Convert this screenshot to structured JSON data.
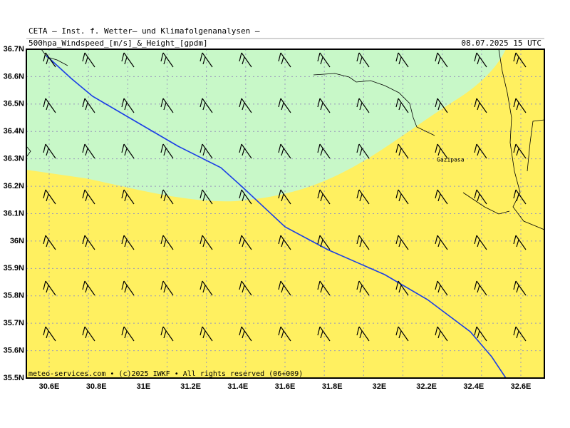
{
  "header": {
    "title": "CETA – Inst. f. Wetter– und Klimafolgenanalysen –",
    "subtitle": "500hpa_Windspeed_[m/s]_&_Height_[gpdm]",
    "date": "08.07.2025 15 UTC"
  },
  "map": {
    "lat_labels": [
      "36.7N",
      "36.6N",
      "36.5N",
      "36.4N",
      "36.3N",
      "36.2N",
      "36.1N",
      "36N",
      "35.9N",
      "35.8N",
      "35.7N",
      "35.6N",
      "35.5N"
    ],
    "lon_labels": [
      "30.6E",
      "30.8E",
      "31E",
      "31.2E",
      "31.4E",
      "31.6E",
      "31.8E",
      "32E",
      "32.2E",
      "32.4E",
      "32.6E"
    ],
    "place": "Gazipasa",
    "footer": "meteo-services.com • (c)2025 IWKF • All rights reserved (06+009)"
  }
}
